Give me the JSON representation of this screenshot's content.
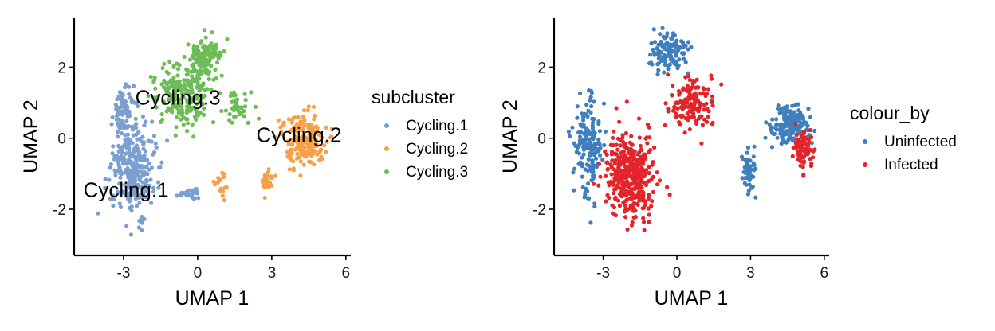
{
  "chart_data": [
    {
      "type": "scatter",
      "xlabel": "UMAP 1",
      "ylabel": "UMAP 2",
      "xlim": [
        -5.0,
        6.2
      ],
      "ylim": [
        -3.3,
        3.4
      ],
      "xticks": [
        -3,
        0,
        3,
        6
      ],
      "yticks": [
        -2,
        0,
        2
      ],
      "xtick_labels": [
        "-3",
        "0",
        "3",
        "6"
      ],
      "ytick_labels": [
        "-2",
        "0",
        "2"
      ],
      "legend": {
        "title": "subcluster",
        "placement": "right",
        "entries": [
          {
            "label": "Cycling.1",
            "color": "#7b9fd0"
          },
          {
            "label": "Cycling.2",
            "color": "#f7a04a"
          },
          {
            "label": "Cycling.3",
            "color": "#6cbd55"
          }
        ]
      },
      "annotations": [
        {
          "text": "Cycling.3",
          "x": -0.8,
          "y": 1.1
        },
        {
          "text": "Cycling.2",
          "x": 4.1,
          "y": 0.05
        },
        {
          "text": "Cycling.1",
          "x": -2.9,
          "y": -1.5
        }
      ],
      "series": [
        {
          "name": "Cycling.1",
          "color": "#7b9fd0",
          "count": 440,
          "regions": [
            {
              "cx": -2.6,
              "cy": -0.9,
              "sx": 0.75,
              "sy": 1.05,
              "w": 0.75
            },
            {
              "cx": -3.0,
              "cy": 0.8,
              "sx": 0.35,
              "sy": 0.55,
              "w": 0.2
            },
            {
              "cx": -0.3,
              "cy": -1.55,
              "sx": 0.4,
              "sy": 0.15,
              "w": 0.05
            }
          ]
        },
        {
          "name": "Cycling.2",
          "color": "#f7a04a",
          "count": 250,
          "regions": [
            {
              "cx": 4.3,
              "cy": -0.05,
              "sx": 0.8,
              "sy": 0.6,
              "w": 0.82
            },
            {
              "cx": 2.8,
              "cy": -1.2,
              "sx": 0.25,
              "sy": 0.35,
              "w": 0.1
            },
            {
              "cx": 0.9,
              "cy": -1.2,
              "sx": 0.2,
              "sy": 0.4,
              "w": 0.08
            }
          ]
        },
        {
          "name": "Cycling.3",
          "color": "#6cbd55",
          "count": 390,
          "regions": [
            {
              "cx": -0.6,
              "cy": 1.3,
              "sx": 1.0,
              "sy": 0.7,
              "w": 0.55
            },
            {
              "cx": 0.3,
              "cy": 2.3,
              "sx": 0.55,
              "sy": 0.45,
              "w": 0.3
            },
            {
              "cx": 1.6,
              "cy": 0.9,
              "sx": 0.5,
              "sy": 0.4,
              "w": 0.15
            }
          ]
        }
      ]
    },
    {
      "type": "scatter",
      "xlabel": "UMAP 1",
      "ylabel": "UMAP 2",
      "xlim": [
        -5.0,
        6.2
      ],
      "ylim": [
        -3.3,
        3.4
      ],
      "xticks": [
        -3,
        0,
        3,
        6
      ],
      "yticks": [
        -2,
        0,
        2
      ],
      "xtick_labels": [
        "-3",
        "0",
        "3",
        "6"
      ],
      "ytick_labels": [
        "-2",
        "0",
        "2"
      ],
      "legend": {
        "title": "colour_by",
        "placement": "right",
        "entries": [
          {
            "label": "Uninfected",
            "color": "#3f7fbe"
          },
          {
            "label": "Infected",
            "color": "#e3242b"
          }
        ]
      },
      "series": [
        {
          "name": "Uninfected",
          "color": "#3f7fbe",
          "count": 520,
          "regions": [
            {
              "cx": -3.6,
              "cy": -0.2,
              "sx": 0.45,
              "sy": 1.2,
              "w": 0.35
            },
            {
              "cx": -0.3,
              "cy": 2.4,
              "sx": 0.7,
              "sy": 0.45,
              "w": 0.25
            },
            {
              "cx": 4.6,
              "cy": 0.4,
              "sx": 0.7,
              "sy": 0.45,
              "w": 0.3
            },
            {
              "cx": 2.9,
              "cy": -1.0,
              "sx": 0.25,
              "sy": 0.4,
              "w": 0.1
            }
          ]
        },
        {
          "name": "Infected",
          "color": "#e3242b",
          "count": 600,
          "regions": [
            {
              "cx": -1.9,
              "cy": -1.0,
              "sx": 0.8,
              "sy": 0.95,
              "w": 0.6
            },
            {
              "cx": 0.6,
              "cy": 1.0,
              "sx": 0.8,
              "sy": 0.6,
              "w": 0.25
            },
            {
              "cx": 5.1,
              "cy": -0.3,
              "sx": 0.35,
              "sy": 0.5,
              "w": 0.15
            }
          ]
        }
      ]
    }
  ]
}
